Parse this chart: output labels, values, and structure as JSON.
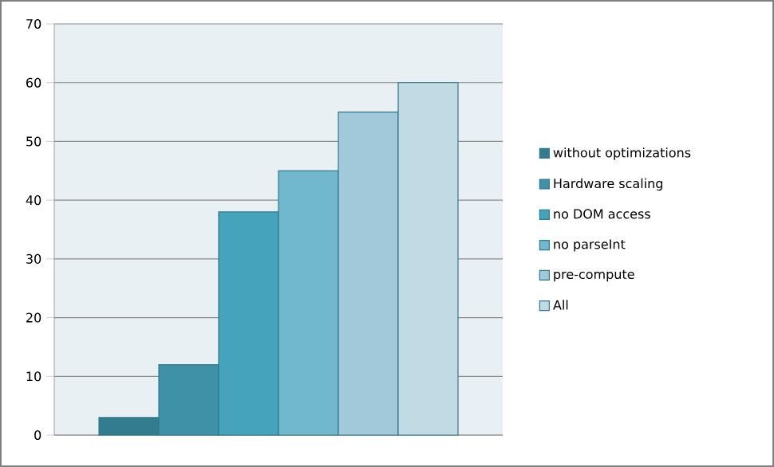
{
  "chart_data": {
    "type": "bar",
    "categories": [
      null
    ],
    "series": [
      {
        "name": "without optimizations",
        "color": "#337c8f",
        "values": [
          3
        ]
      },
      {
        "name": "Hardware scaling",
        "color": "#3f91a8",
        "values": [
          12
        ]
      },
      {
        "name": "no DOM access",
        "color": "#45a3bc",
        "values": [
          38
        ]
      },
      {
        "name": "no parseInt",
        "color": "#71b7cd",
        "values": [
          45
        ]
      },
      {
        "name": "pre-compute",
        "color": "#a1c9d9",
        "values": [
          55
        ]
      },
      {
        "name": "All",
        "color": "#c2dae3",
        "values": [
          60
        ]
      }
    ],
    "ylim": [
      0,
      70
    ],
    "yticks": [
      0,
      10,
      20,
      30,
      40,
      50,
      60,
      70
    ],
    "grid": "y",
    "legend": "right"
  }
}
